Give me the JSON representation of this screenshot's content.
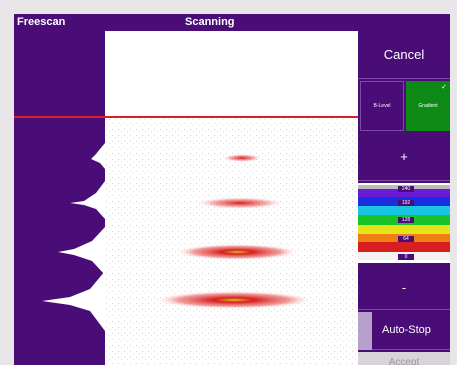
{
  "titlebar": {
    "app_name": "Freescan",
    "status": "Scanning"
  },
  "buttons": {
    "cancel": "Cancel",
    "b_level": "B-Level",
    "gradient": "Gradient",
    "plus": "+",
    "minus": "-",
    "auto_stop": "Auto-Stop",
    "accept": "Accept"
  },
  "palette_values": [
    "240",
    "192",
    "128",
    "64",
    "0"
  ],
  "colors": {
    "background": "#4a0d78",
    "accent_green": "#0d8a16",
    "cursor_line": "#d81e2a"
  },
  "icons": {
    "gradient_selected": "check-icon"
  }
}
